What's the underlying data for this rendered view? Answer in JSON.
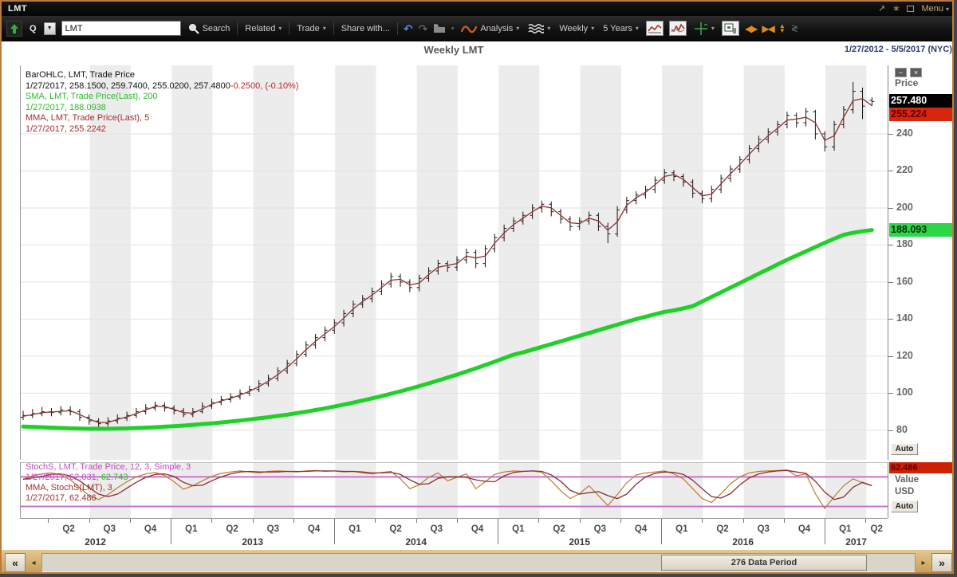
{
  "window": {
    "title": "LMT",
    "menu_label": "Menu"
  },
  "toolbar": {
    "symbol_type": "Q",
    "symbol_input": "LMT",
    "search_label": "Search",
    "related_label": "Related",
    "trade_label": "Trade",
    "share_label": "Share with...",
    "analysis_label": "Analysis",
    "frequency_label": "Weekly",
    "range_label": "5 Years"
  },
  "header": {
    "title": "Weekly LMT",
    "date_range": "1/27/2012 - 5/5/2017 (NYC)"
  },
  "legend_main": {
    "line1": "BarOHLC, LMT, Trade Price",
    "line2_black": "1/27/2017, 258.1500, 259.7400, 255.0200, 257.4800",
    "line2_red": "-0.2500, (-0.10%)",
    "line3": "SMA, LMT, Trade Price(Last),  200",
    "line4": "1/27/2017, 188.0938",
    "line5": "MMA, LMT, Trade Price(Last),  5",
    "line6": "1/27/2017, 255.2242"
  },
  "legend_stoch": {
    "line1": "StochS, LMT, Trade Price,  12, 3, Simple, 3",
    "line2_magenta": "1/27/2017, 62.031,",
    "line2_green": "62.743",
    "line3": "MMA, StochS(LMT),  3",
    "line4": "1/27/2017, 62.486"
  },
  "price_axis": {
    "label": "Price",
    "auto": "Auto",
    "last_box": "257.480",
    "mma_box": "255.224",
    "sma_box": "188.093"
  },
  "stoch_axis": {
    "box": "62.486",
    "value_label": "Value",
    "currency_label": "USD",
    "auto": "Auto"
  },
  "scrollbar": {
    "label": "276 Data Period"
  },
  "colors": {
    "sma": "#1fd028",
    "mma": "#8b2f2f",
    "bars": "#161616",
    "band": "#ececec",
    "grid": "#e2e2e2",
    "stoch_k": "#bf7a2f",
    "stoch_d": "#8b2f2f",
    "stoch_level": "#c875c8",
    "box_last_bg": "#000000",
    "box_last_fg": "#ffffff",
    "box_mma_bg": "#d8260e",
    "box_mma_fg": "#5f0000",
    "box_sma_bg": "#2bd648",
    "box_sma_fg": "#0a2a0a",
    "box_stoch_bg": "#cc2200",
    "box_stoch_fg": "#5f0000"
  },
  "chart_data": {
    "type": "ohlc",
    "title": "Weekly LMT",
    "ylabel": "Price",
    "ylim": [
      64,
      277
    ],
    "price_ticks": [
      240,
      220,
      200,
      180,
      160,
      140,
      120,
      100,
      80
    ],
    "total_weeks": 276,
    "weeks_per_point": 3,
    "first_quarter_end_week": 9,
    "weeks_per_quarter": 13,
    "quarter_labels": [
      "Q2",
      "Q3",
      "Q4",
      "Q1",
      "Q2",
      "Q3",
      "Q4",
      "Q1",
      "Q2",
      "Q3",
      "Q4",
      "Q1",
      "Q2",
      "Q3",
      "Q4",
      "Q1",
      "Q2",
      "Q3",
      "Q4",
      "Q1",
      "Q2"
    ],
    "years": [
      {
        "label": "2012",
        "start_week": 0,
        "end_week": 48
      },
      {
        "label": "2013",
        "start_week": 48,
        "end_week": 100
      },
      {
        "label": "2014",
        "start_week": 100,
        "end_week": 152
      },
      {
        "label": "2015",
        "start_week": 152,
        "end_week": 204
      },
      {
        "label": "2016",
        "start_week": 204,
        "end_week": 256
      },
      {
        "label": "2017",
        "start_week": 256,
        "end_week": 276
      }
    ],
    "last_close": 257.48,
    "last_mma": 255.224,
    "last_sma": 188.093,
    "bars": [
      [
        87,
        90.5,
        85.5,
        88
      ],
      [
        88,
        91.5,
        86.5,
        89
      ],
      [
        89,
        92.5,
        87.5,
        90
      ],
      [
        90,
        92,
        87.5,
        89.5
      ],
      [
        89.5,
        93,
        88,
        91
      ],
      [
        91,
        93,
        88,
        90
      ],
      [
        90,
        91.5,
        85,
        87
      ],
      [
        87,
        88.5,
        83,
        85
      ],
      [
        85,
        86.5,
        81.5,
        83.5
      ],
      [
        83.5,
        87,
        82,
        85
      ],
      [
        85,
        88.5,
        83.5,
        86.5
      ],
      [
        86.5,
        90,
        85,
        88
      ],
      [
        88,
        92,
        86.5,
        90
      ],
      [
        90,
        94,
        88.5,
        92
      ],
      [
        92,
        95.5,
        90.5,
        93.5
      ],
      [
        93.5,
        95,
        90,
        92
      ],
      [
        92,
        93.5,
        88.5,
        90.5
      ],
      [
        90.5,
        92,
        87,
        88.5
      ],
      [
        88.5,
        92,
        87,
        90
      ],
      [
        90,
        95,
        89,
        93
      ],
      [
        93,
        97,
        91.5,
        95
      ],
      [
        95,
        98.5,
        93.5,
        96.5
      ],
      [
        96.5,
        100,
        95,
        98
      ],
      [
        98,
        102,
        96.5,
        100
      ],
      [
        100,
        104,
        98.5,
        102
      ],
      [
        102,
        107,
        100.5,
        105
      ],
      [
        105,
        110,
        103.5,
        108
      ],
      [
        108,
        114,
        106.5,
        112
      ],
      [
        112,
        118,
        110.5,
        116
      ],
      [
        116,
        123,
        114.5,
        121
      ],
      [
        121,
        128,
        119.5,
        126
      ],
      [
        126,
        132,
        124,
        130
      ],
      [
        130,
        136,
        128,
        134
      ],
      [
        134,
        140,
        132,
        138
      ],
      [
        138,
        145,
        136,
        143
      ],
      [
        143,
        150,
        141,
        148
      ],
      [
        148,
        153,
        146,
        151
      ],
      [
        151,
        157,
        149,
        155
      ],
      [
        155,
        161,
        153,
        159
      ],
      [
        159,
        165,
        157,
        163
      ],
      [
        163,
        164.5,
        157.5,
        160
      ],
      [
        160,
        161.5,
        154.5,
        157
      ],
      [
        157,
        164,
        155,
        162
      ],
      [
        162,
        168,
        160,
        166
      ],
      [
        166,
        172,
        164,
        170
      ],
      [
        170,
        171.5,
        165.5,
        168
      ],
      [
        168,
        174,
        166,
        172
      ],
      [
        172,
        178,
        170,
        176
      ],
      [
        176,
        177.5,
        167.5,
        170
      ],
      [
        170,
        180,
        168,
        178
      ],
      [
        178,
        186,
        176,
        184
      ],
      [
        184,
        191,
        182,
        189
      ],
      [
        189,
        195,
        187,
        193
      ],
      [
        193,
        198,
        191,
        196
      ],
      [
        196,
        202,
        194,
        200
      ],
      [
        200,
        204,
        197.5,
        202
      ],
      [
        202,
        203.5,
        195.5,
        198
      ],
      [
        198,
        199.5,
        191.5,
        194
      ],
      [
        194,
        195.5,
        187.5,
        190
      ],
      [
        190,
        195,
        188,
        193
      ],
      [
        193,
        198,
        191,
        196
      ],
      [
        196,
        197.5,
        187.5,
        190
      ],
      [
        190,
        192,
        181,
        186
      ],
      [
        186,
        201,
        184.5,
        199
      ],
      [
        199,
        206,
        197,
        204
      ],
      [
        204,
        209,
        202,
        207
      ],
      [
        207,
        212,
        205,
        210
      ],
      [
        210,
        217,
        208,
        215
      ],
      [
        215,
        221,
        213,
        219
      ],
      [
        219,
        220.5,
        214.5,
        217
      ],
      [
        217,
        218.5,
        211.5,
        214
      ],
      [
        214,
        215.5,
        205.5,
        208
      ],
      [
        208,
        209.5,
        202.5,
        205
      ],
      [
        205,
        212,
        203,
        210
      ],
      [
        210,
        218,
        208,
        216
      ],
      [
        216,
        223,
        214,
        221
      ],
      [
        221,
        228,
        219,
        226
      ],
      [
        226,
        234,
        224,
        232
      ],
      [
        232,
        239,
        230,
        237
      ],
      [
        237,
        243,
        235,
        241
      ],
      [
        241,
        247,
        239,
        245
      ],
      [
        245,
        252,
        243,
        250
      ],
      [
        250,
        251.5,
        243.5,
        246
      ],
      [
        246,
        254,
        244,
        252
      ],
      [
        252,
        253,
        237,
        240
      ],
      [
        240,
        241.5,
        230.5,
        233
      ],
      [
        233,
        247,
        231,
        245
      ],
      [
        245,
        255,
        243,
        253
      ],
      [
        253,
        268,
        251,
        263
      ],
      [
        263,
        265,
        248,
        255
      ],
      [
        258.15,
        259.74,
        255.02,
        257.48
      ]
    ],
    "sma200": [
      82,
      81.8,
      81.6,
      81.4,
      81.2,
      81,
      80.9,
      80.8,
      80.8,
      80.8,
      80.9,
      81,
      81.2,
      81.4,
      81.6,
      81.9,
      82.2,
      82.5,
      82.9,
      83.3,
      83.7,
      84.2,
      84.7,
      85.2,
      85.8,
      86.4,
      87,
      87.7,
      88.4,
      89.2,
      90,
      90.9,
      91.8,
      92.8,
      93.8,
      94.9,
      96,
      97.2,
      98.4,
      99.7,
      101,
      102.4,
      103.8,
      105.3,
      106.8,
      108.4,
      110,
      111.7,
      113.4,
      115.2,
      117,
      118.9,
      120.8,
      122,
      123.5,
      125,
      126.5,
      128,
      129.5,
      131,
      132.5,
      134,
      135.5,
      137,
      138.5,
      140,
      141.3,
      142.6,
      143.9,
      144.7,
      145.8,
      147,
      149.5,
      152,
      154.5,
      157,
      159.5,
      162,
      164.5,
      167,
      169.5,
      172,
      174.3,
      176.6,
      178.9,
      181.2,
      183.4,
      185.5,
      186.6,
      187.4,
      188.09
    ],
    "mma5": [
      87.5,
      88.5,
      89.5,
      89.8,
      90.2,
      90.5,
      88.5,
      86,
      84.2,
      84.2,
      85.8,
      87.2,
      89,
      91,
      92.8,
      92.8,
      91.2,
      89.5,
      89.2,
      91.5,
      94,
      95.8,
      97.2,
      99,
      101,
      103.5,
      106.5,
      110,
      114,
      118.5,
      123.5,
      128,
      132,
      136,
      140.5,
      145.5,
      149.5,
      153,
      157,
      161,
      161.5,
      158.5,
      159.5,
      164,
      168,
      169,
      170,
      174,
      173,
      174,
      181,
      186.5,
      191,
      194.5,
      198,
      201,
      200,
      196,
      192,
      191.5,
      194.5,
      193,
      188,
      192.5,
      201.5,
      205.5,
      208.5,
      212.5,
      217,
      218,
      215.5,
      211,
      206.5,
      207.5,
      213,
      218.5,
      223.5,
      229,
      234.5,
      239,
      243,
      247.5,
      248,
      249,
      246,
      236.5,
      239,
      249,
      258,
      259,
      255.22
    ],
    "stoch": {
      "ylim": [
        -5,
        108
      ],
      "levels": [
        80,
        20
      ],
      "last_k": 62.031,
      "last_d": 62.486,
      "k": [
        75,
        82,
        86,
        88,
        84,
        74,
        58,
        42,
        34,
        44,
        58,
        70,
        80,
        86,
        89,
        83,
        70,
        55,
        62,
        72,
        81,
        87,
        90,
        92,
        90,
        88,
        91,
        92,
        91,
        90,
        92,
        93,
        91,
        92,
        90,
        91,
        88,
        86,
        89,
        91,
        76,
        56,
        64,
        79,
        88,
        72,
        79,
        86,
        56,
        70,
        85,
        90,
        92,
        91,
        92,
        89,
        72,
        52,
        36,
        46,
        62,
        42,
        22,
        44,
        68,
        84,
        88,
        90,
        92,
        86,
        76,
        56,
        36,
        28,
        46,
        66,
        80,
        88,
        91,
        92,
        93,
        94,
        82,
        86,
        46,
        16,
        40,
        62,
        76,
        68,
        62.03
      ],
      "d": [
        75,
        78,
        81,
        85,
        86,
        82,
        72,
        58,
        45,
        40,
        45,
        57,
        69,
        79,
        85,
        86,
        81,
        69,
        62,
        63,
        72,
        80,
        86,
        90,
        91,
        90,
        90,
        90,
        91,
        91,
        91,
        92,
        92,
        92,
        91,
        91,
        90,
        88,
        88,
        89,
        85,
        74,
        65,
        66,
        77,
        80,
        80,
        79,
        74,
        71,
        70,
        82,
        89,
        91,
        92,
        91,
        84,
        71,
        53,
        45,
        48,
        50,
        42,
        36,
        45,
        65,
        80,
        87,
        90,
        89,
        85,
        73,
        56,
        40,
        37,
        46,
        64,
        78,
        86,
        90,
        92,
        93,
        90,
        87,
        71,
        49,
        34,
        39,
        59,
        69,
        62.49
      ]
    }
  }
}
